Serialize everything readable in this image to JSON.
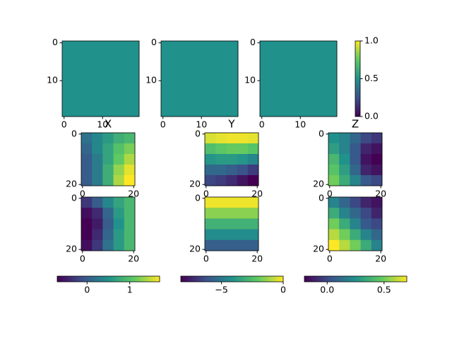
{
  "chart_data": [
    {
      "type": "heatmap",
      "colormap": "viridis",
      "clim": [
        0,
        1
      ],
      "values": [
        [
          0.5
        ]
      ],
      "xlim": [
        -0.5,
        19.5
      ],
      "ylim": [
        19.5,
        -0.5
      ],
      "xticks": [
        0,
        10
      ],
      "yticks": [
        0,
        10
      ]
    },
    {
      "type": "heatmap",
      "colormap": "viridis",
      "clim": [
        0,
        1
      ],
      "values": [
        [
          0.5
        ]
      ],
      "xlim": [
        -0.5,
        19.5
      ],
      "ylim": [
        19.5,
        -0.5
      ],
      "xticks": [
        0,
        10
      ],
      "yticks": [
        0,
        10
      ]
    },
    {
      "type": "heatmap",
      "colormap": "viridis",
      "clim": [
        0,
        1
      ],
      "values": [
        [
          0.5
        ]
      ],
      "xlim": [
        -0.5,
        19.5
      ],
      "ylim": [
        19.5,
        -0.5
      ],
      "xticks": [
        0,
        10
      ],
      "yticks": [
        0,
        10
      ],
      "colorbar": {
        "orientation": "vertical",
        "ticks": [
          {
            "value": 0,
            "label": "0.0"
          },
          0.5,
          {
            "value": 1,
            "label": "1.0"
          }
        ]
      }
    },
    {
      "type": "heatmap",
      "title": "X",
      "colormap": "viridis",
      "clim": [
        -0.7,
        1.7
      ],
      "xlim": [
        -0.5,
        20.5
      ],
      "ylim": [
        20.5,
        -0.5
      ],
      "xticks": [
        0,
        20
      ],
      "yticks": [
        0,
        20
      ],
      "values": [
        [
          0.2,
          0.4,
          0.6,
          0.8,
          0.9
        ],
        [
          0.1,
          0.4,
          0.7,
          1.0,
          1.2
        ],
        [
          0.0,
          0.3,
          0.7,
          1.1,
          1.4
        ],
        [
          0.0,
          0.3,
          0.8,
          1.3,
          1.6
        ],
        [
          0.0,
          0.3,
          0.8,
          1.4,
          1.7
        ]
      ]
    },
    {
      "type": "heatmap",
      "title": "Y",
      "colormap": "viridis",
      "clim": [
        -8.3,
        0
      ],
      "xlim": [
        -0.5,
        20.5
      ],
      "ylim": [
        20.5,
        -0.5
      ],
      "xticks": [
        0,
        20
      ],
      "yticks": [
        0,
        20
      ],
      "values": [
        [
          -0.5,
          -0.3,
          -0.2,
          -0.2,
          -0.3
        ],
        [
          -2.5,
          -2.2,
          -2.0,
          -2.0,
          -2.3
        ],
        [
          -4.0,
          -3.8,
          -3.8,
          -4.0,
          -4.5
        ],
        [
          -5.5,
          -5.5,
          -5.8,
          -6.2,
          -6.8
        ],
        [
          -6.5,
          -6.8,
          -7.2,
          -7.8,
          -8.3
        ]
      ]
    },
    {
      "type": "heatmap",
      "title": "Z",
      "colormap": "viridis",
      "clim": [
        -0.2,
        0.7
      ],
      "xlim": [
        -0.5,
        20.5
      ],
      "ylim": [
        20.5,
        -0.5
      ],
      "xticks": [
        0,
        20
      ],
      "yticks": [
        0,
        20
      ],
      "values": [
        [
          0.25,
          0.2,
          0.1,
          0.0,
          -0.05
        ],
        [
          0.3,
          0.2,
          0.05,
          -0.1,
          -0.15
        ],
        [
          0.4,
          0.25,
          0.05,
          -0.15,
          -0.2
        ],
        [
          0.45,
          0.3,
          0.1,
          -0.1,
          -0.15
        ],
        [
          0.5,
          0.35,
          0.2,
          0.05,
          0.0
        ]
      ]
    },
    {
      "type": "heatmap",
      "colormap": "viridis",
      "clim": [
        -0.7,
        1.7
      ],
      "xlim": [
        -0.5,
        20.5
      ],
      "ylim": [
        20.5,
        -0.5
      ],
      "xticks": [
        0,
        20
      ],
      "yticks": [
        0,
        20
      ],
      "values": [
        [
          -0.3,
          0.0,
          0.4,
          0.7,
          0.9
        ],
        [
          -0.6,
          -0.4,
          0.1,
          0.6,
          0.9
        ],
        [
          -0.7,
          -0.5,
          0.0,
          0.5,
          0.9
        ],
        [
          -0.7,
          -0.4,
          0.1,
          0.6,
          0.9
        ],
        [
          -0.6,
          -0.3,
          0.2,
          0.6,
          0.9
        ]
      ],
      "colorbar": {
        "orientation": "horizontal",
        "ticks": [
          0,
          1
        ]
      }
    },
    {
      "type": "heatmap",
      "colormap": "viridis",
      "clim": [
        -8.3,
        0
      ],
      "xlim": [
        -0.5,
        20.5
      ],
      "ylim": [
        20.5,
        -0.5
      ],
      "xticks": [
        0,
        20
      ],
      "yticks": [
        0,
        20
      ],
      "values": [
        [
          -0.2,
          -0.2,
          -0.2,
          -0.2,
          -0.2
        ],
        [
          -1.5,
          -1.5,
          -1.5,
          -1.5,
          -1.5
        ],
        [
          -3.0,
          -3.0,
          -3.0,
          -3.0,
          -3.0
        ],
        [
          -4.3,
          -4.3,
          -4.3,
          -4.3,
          -4.3
        ],
        [
          -5.8,
          -5.8,
          -5.8,
          -5.8,
          -5.8
        ]
      ],
      "colorbar": {
        "orientation": "horizontal",
        "ticks": [
          {
            "value": -5,
            "label": "−5"
          },
          0
        ]
      }
    },
    {
      "type": "heatmap",
      "colormap": "viridis",
      "clim": [
        -0.2,
        0.7
      ],
      "xlim": [
        -0.5,
        20.5
      ],
      "ylim": [
        20.5,
        -0.5
      ],
      "xticks": [
        0,
        20
      ],
      "yticks": [
        0,
        20
      ],
      "values": [
        [
          0.2,
          0.1,
          0.0,
          -0.1,
          -0.15
        ],
        [
          0.35,
          0.2,
          0.1,
          0.0,
          -0.1
        ],
        [
          0.5,
          0.35,
          0.2,
          0.05,
          0.0
        ],
        [
          0.6,
          0.5,
          0.35,
          0.2,
          0.1
        ],
        [
          0.7,
          0.6,
          0.5,
          0.35,
          0.2
        ]
      ],
      "colorbar": {
        "orientation": "horizontal",
        "ticks": [
          {
            "value": 0,
            "label": "0.0"
          },
          0.5
        ]
      }
    }
  ]
}
